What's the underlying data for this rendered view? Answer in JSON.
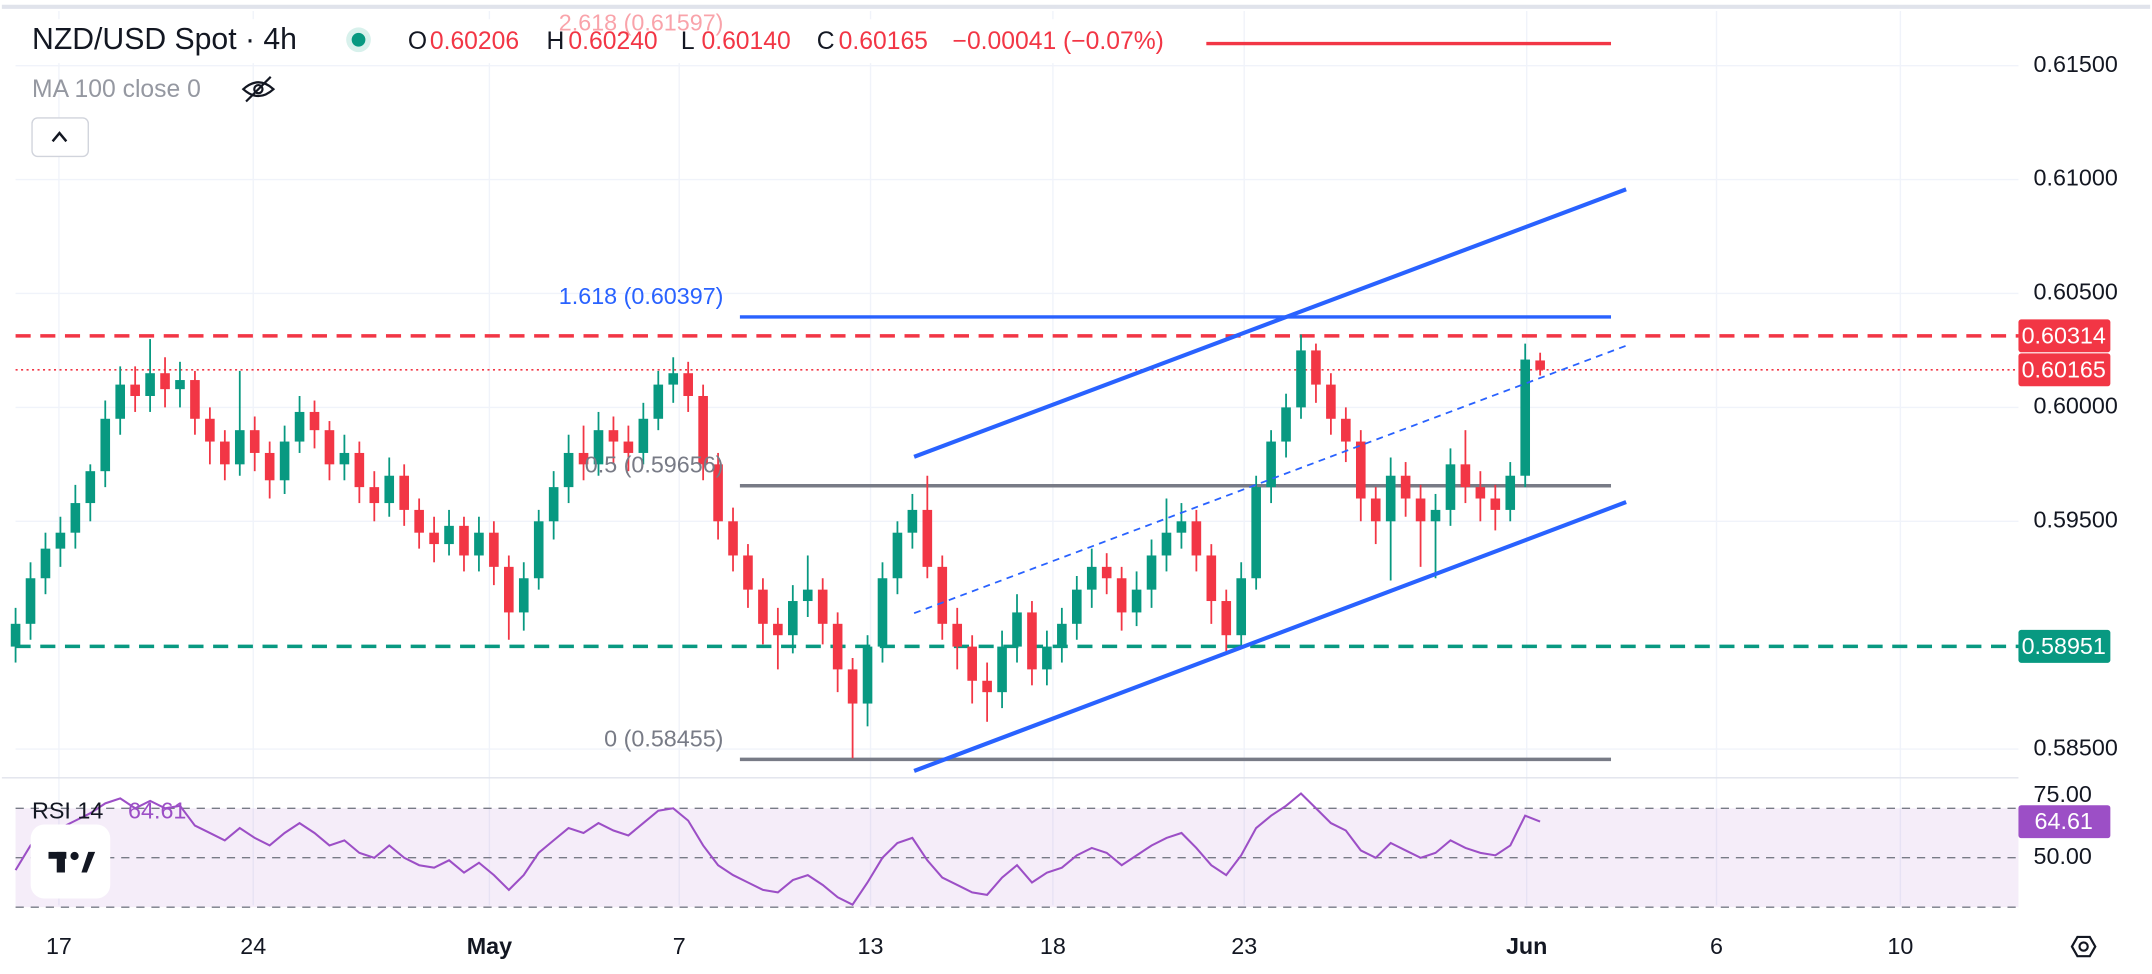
{
  "header": {
    "symbol": "NZD/USD Spot · 4h",
    "ohlc": [
      {
        "key": "O",
        "value": "0.60206"
      },
      {
        "key": "H",
        "value": "0.60240"
      },
      {
        "key": "L",
        "value": "0.60140"
      },
      {
        "key": "C",
        "value": "0.60165"
      }
    ],
    "change": "−0.00041 (−0.07%)",
    "indicator": "MA 100 close 0"
  },
  "chart_data": {
    "type": "candlestick",
    "grid": true,
    "up_color": "#089981",
    "down_color": "#f23645",
    "xlim": [
      0,
      134
    ],
    "xticks": [
      {
        "value": 2.9,
        "label": "17"
      },
      {
        "value": 15.9,
        "label": "24"
      },
      {
        "value": 31.7,
        "label": "May"
      },
      {
        "value": 44.4,
        "label": "7"
      },
      {
        "value": 57.2,
        "label": "13"
      },
      {
        "value": 69.4,
        "label": "18"
      },
      {
        "value": 82.2,
        "label": "23"
      },
      {
        "value": 101.1,
        "label": "Jun"
      },
      {
        "value": 113.8,
        "label": "6"
      },
      {
        "value": 126.1,
        "label": "10"
      }
    ],
    "ylim": [
      0.5838,
      0.6174
    ],
    "yticks": [
      {
        "value": 0.585,
        "label": "0.58500"
      },
      {
        "value": 0.595,
        "label": "0.59500"
      },
      {
        "value": 0.6,
        "label": "0.60000"
      },
      {
        "value": 0.605,
        "label": "0.60500"
      },
      {
        "value": 0.61,
        "label": "0.61000"
      },
      {
        "value": 0.615,
        "label": "0.61500"
      }
    ],
    "open": [
      0.5895,
      0.5905,
      0.5925,
      0.5938,
      0.5945,
      0.5958,
      0.5972,
      0.5995,
      0.601,
      0.6005,
      0.6015,
      0.6008,
      0.6012,
      0.5995,
      0.5985,
      0.5975,
      0.599,
      0.598,
      0.5968,
      0.5985,
      0.5998,
      0.599,
      0.5975,
      0.598,
      0.5965,
      0.5958,
      0.597,
      0.5955,
      0.5945,
      0.594,
      0.5948,
      0.5935,
      0.5945,
      0.593,
      0.591,
      0.5925,
      0.595,
      0.5965,
      0.598,
      0.5975,
      0.599,
      0.5985,
      0.598,
      0.5995,
      0.601,
      0.6015,
      0.6005,
      0.5975,
      0.595,
      0.5935,
      0.592,
      0.5905,
      0.59,
      0.5915,
      0.592,
      0.5905,
      0.5885,
      0.587,
      0.5895,
      0.5925,
      0.5945,
      0.5955,
      0.593,
      0.5905,
      0.5895,
      0.588,
      0.5875,
      0.5895,
      0.591,
      0.5885,
      0.5895,
      0.5905,
      0.592,
      0.593,
      0.5925,
      0.591,
      0.592,
      0.5935,
      0.5945,
      0.595,
      0.5935,
      0.5915,
      0.59,
      0.5925,
      0.5965,
      0.5985,
      0.6,
      0.6025,
      0.601,
      0.5995,
      0.5985,
      0.596,
      0.595,
      0.597,
      0.596,
      0.595,
      0.5955,
      0.5975,
      0.5965,
      0.596,
      0.5955,
      0.597,
      0.60206
    ],
    "high": [
      0.5912,
      0.5932,
      0.5945,
      0.5952,
      0.5966,
      0.5975,
      0.6003,
      0.6018,
      0.6018,
      0.603,
      0.6022,
      0.602,
      0.6016,
      0.6,
      0.599,
      0.6016,
      0.5996,
      0.5985,
      0.5992,
      0.6005,
      0.6003,
      0.5994,
      0.5988,
      0.5985,
      0.5972,
      0.5978,
      0.5975,
      0.596,
      0.5952,
      0.5955,
      0.5952,
      0.5952,
      0.595,
      0.5935,
      0.5932,
      0.5955,
      0.5972,
      0.5988,
      0.5992,
      0.5998,
      0.5996,
      0.5992,
      0.6002,
      0.6016,
      0.6022,
      0.602,
      0.601,
      0.598,
      0.5956,
      0.594,
      0.5925,
      0.5912,
      0.5922,
      0.5935,
      0.5925,
      0.591,
      0.589,
      0.59,
      0.5932,
      0.595,
      0.5962,
      0.597,
      0.5935,
      0.5912,
      0.59,
      0.5888,
      0.5902,
      0.5918,
      0.5915,
      0.5902,
      0.5912,
      0.5926,
      0.5938,
      0.5936,
      0.593,
      0.5928,
      0.5942,
      0.596,
      0.5958,
      0.5955,
      0.594,
      0.592,
      0.5932,
      0.597,
      0.599,
      0.6006,
      0.6032,
      0.6028,
      0.6015,
      0.6,
      0.599,
      0.5965,
      0.5978,
      0.5976,
      0.5966,
      0.5962,
      0.5982,
      0.599,
      0.5972,
      0.5966,
      0.5976,
      0.6028,
      0.6024
    ],
    "low": [
      0.5888,
      0.5898,
      0.5918,
      0.593,
      0.5938,
      0.595,
      0.5965,
      0.5988,
      0.5998,
      0.5998,
      0.6,
      0.6,
      0.5988,
      0.5975,
      0.5968,
      0.597,
      0.5972,
      0.596,
      0.5962,
      0.598,
      0.5982,
      0.5968,
      0.5968,
      0.5958,
      0.595,
      0.5952,
      0.5948,
      0.5938,
      0.5932,
      0.5935,
      0.5928,
      0.5928,
      0.5922,
      0.5898,
      0.5902,
      0.592,
      0.5942,
      0.5958,
      0.5968,
      0.597,
      0.5975,
      0.5972,
      0.5975,
      0.599,
      0.6002,
      0.5998,
      0.5968,
      0.5942,
      0.5928,
      0.5912,
      0.5896,
      0.5885,
      0.5892,
      0.5908,
      0.5896,
      0.5875,
      0.5846,
      0.586,
      0.5888,
      0.5918,
      0.5938,
      0.5925,
      0.5898,
      0.5885,
      0.587,
      0.5862,
      0.5868,
      0.5888,
      0.5878,
      0.5878,
      0.5888,
      0.5898,
      0.5912,
      0.5918,
      0.5902,
      0.5904,
      0.5912,
      0.5928,
      0.5938,
      0.5928,
      0.5905,
      0.5893,
      0.5895,
      0.592,
      0.5958,
      0.5978,
      0.5995,
      0.6002,
      0.5988,
      0.5976,
      0.595,
      0.594,
      0.5924,
      0.5952,
      0.593,
      0.5925,
      0.5948,
      0.5958,
      0.595,
      0.5946,
      0.595,
      0.5965,
      0.6014
    ],
    "close": [
      0.5905,
      0.5925,
      0.5938,
      0.5945,
      0.5958,
      0.5972,
      0.5995,
      0.601,
      0.6005,
      0.6015,
      0.6008,
      0.6012,
      0.5995,
      0.5985,
      0.5975,
      0.599,
      0.598,
      0.5968,
      0.5985,
      0.5998,
      0.599,
      0.5975,
      0.598,
      0.5965,
      0.5958,
      0.597,
      0.5955,
      0.5945,
      0.594,
      0.5948,
      0.5935,
      0.5945,
      0.593,
      0.591,
      0.5925,
      0.595,
      0.5965,
      0.598,
      0.5975,
      0.599,
      0.5985,
      0.598,
      0.5995,
      0.601,
      0.6015,
      0.6005,
      0.5975,
      0.595,
      0.5935,
      0.592,
      0.5905,
      0.59,
      0.5915,
      0.592,
      0.5905,
      0.5885,
      0.587,
      0.5895,
      0.5925,
      0.5945,
      0.5955,
      0.593,
      0.5905,
      0.5895,
      0.588,
      0.5875,
      0.5895,
      0.591,
      0.5885,
      0.5895,
      0.5905,
      0.592,
      0.593,
      0.5925,
      0.591,
      0.592,
      0.5935,
      0.5945,
      0.595,
      0.5935,
      0.5915,
      0.59,
      0.5925,
      0.5965,
      0.5985,
      0.6,
      0.6025,
      0.601,
      0.5995,
      0.5985,
      0.596,
      0.595,
      0.597,
      0.596,
      0.595,
      0.5955,
      0.5975,
      0.5965,
      0.596,
      0.5955,
      0.597,
      0.6021,
      0.60165
    ],
    "levels": [
      {
        "value": 0.60314,
        "color": "#f23645",
        "style": "dashed"
      },
      {
        "value": 0.60165,
        "color": "#f23645",
        "style": "dotted"
      },
      {
        "value": 0.58951,
        "color": "#089981",
        "style": "dashed"
      }
    ],
    "fibonacci": [
      {
        "label": "2.618 (0.61597)",
        "value": 0.61597,
        "color": "#f23645"
      },
      {
        "label": "1.618 (0.60397)",
        "value": 0.60397,
        "color": "#2962ff"
      },
      {
        "label": "0.5 (0.59656)",
        "value": 0.59656,
        "color": "#787b86"
      },
      {
        "label": "0 (0.58455)",
        "value": 0.58455,
        "color": "#787b86"
      }
    ],
    "rsi": {
      "title": "RSI 14",
      "color": "#9c4fc6",
      "ylim": [
        30.7,
        81.8
      ],
      "yticks": [
        {
          "value": 50,
          "label": "50.00"
        },
        {
          "value": 75,
          "label": "75.00"
        }
      ],
      "bands": [
        30,
        50,
        70
      ],
      "values": [
        45,
        55,
        60,
        62,
        65,
        68,
        72,
        74,
        70,
        73,
        70,
        71,
        63,
        60,
        57,
        62,
        58,
        55,
        60,
        64,
        60,
        55,
        57,
        52,
        50,
        55,
        50,
        47,
        46,
        49,
        44,
        48,
        43,
        37,
        43,
        52,
        57,
        62,
        60,
        64,
        61,
        59,
        64,
        69,
        70,
        65,
        55,
        47,
        43,
        40,
        37,
        36,
        41,
        43,
        39,
        34,
        31,
        40,
        50,
        56,
        58,
        49,
        42,
        39,
        36,
        35,
        42,
        47,
        40,
        44,
        46,
        51,
        54,
        52,
        47,
        51,
        55,
        58,
        60,
        54,
        47,
        43,
        51,
        62,
        67,
        71,
        76,
        70,
        64,
        61,
        53,
        50,
        56,
        53,
        50,
        52,
        57,
        54,
        52,
        51,
        55,
        67,
        64.61
      ]
    }
  }
}
